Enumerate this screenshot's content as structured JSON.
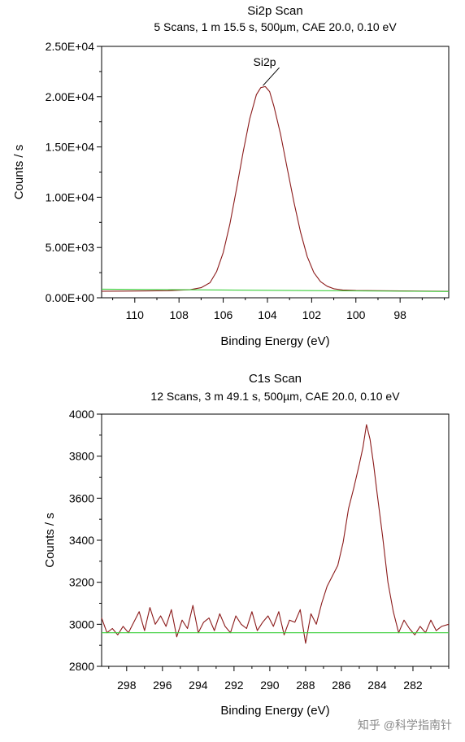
{
  "watermark": "知乎 @科学指南针",
  "chart_data": [
    {
      "type": "line",
      "title": "Si2p Scan",
      "subtitle": "5 Scans,  1 m 15.5 s,  500µm,  CAE 20.0,  0.10 eV",
      "xlabel": "Binding Energy (eV)",
      "ylabel": "Counts / s",
      "xlim": [
        111.5,
        95.8
      ],
      "ylim": [
        0,
        25000
      ],
      "x_reversed": true,
      "x_ticks": [
        110,
        108,
        106,
        104,
        102,
        100,
        98
      ],
      "x_tick_labels": [
        "110",
        "108",
        "106",
        "104",
        "102",
        "100",
        "98"
      ],
      "y_ticks": [
        0,
        5000,
        10000,
        15000,
        20000,
        25000
      ],
      "y_tick_labels": [
        "0.00E+00",
        "5.00E+03",
        "1.00E+04",
        "1.50E+04",
        "2.00E+04",
        "2.50E+04"
      ],
      "annotation": {
        "text": "Si2p",
        "x": 104.2,
        "y": 21100
      },
      "series": [
        {
          "color": "#8b1a1a",
          "x": [
            111.5,
            110.5,
            109.5,
            108.5,
            107.5,
            107.0,
            106.6,
            106.3,
            106.0,
            105.7,
            105.4,
            105.1,
            104.8,
            104.5,
            104.3,
            104.1,
            103.9,
            103.7,
            103.4,
            103.1,
            102.8,
            102.5,
            102.2,
            101.9,
            101.6,
            101.3,
            101.0,
            100.6,
            100.0,
            99.0,
            98.0,
            97.0,
            95.8
          ],
          "y": [
            650,
            660,
            680,
            700,
            800,
            1000,
            1500,
            2600,
            4500,
            7300,
            10800,
            14500,
            17800,
            20200,
            20900,
            21000,
            20500,
            19000,
            16200,
            12800,
            9500,
            6500,
            4100,
            2500,
            1600,
            1150,
            900,
            780,
            720,
            700,
            680,
            660,
            650
          ]
        },
        {
          "color": "#3ccf3c",
          "x": [
            111.5,
            95.8
          ],
          "y": [
            860,
            620
          ]
        }
      ]
    },
    {
      "type": "line",
      "title": "C1s Scan",
      "subtitle": "12 Scans,  3 m 49.1 s,  500µm,  CAE 20.0,  0.10 eV",
      "xlabel": "Binding Energy (eV)",
      "ylabel": "Counts / s",
      "xlim": [
        299.4,
        280.0
      ],
      "ylim": [
        2800,
        4000
      ],
      "x_reversed": true,
      "x_ticks": [
        298,
        296,
        294,
        292,
        290,
        288,
        286,
        284,
        282
      ],
      "x_tick_labels": [
        "298",
        "296",
        "294",
        "292",
        "290",
        "288",
        "286",
        "284",
        "282"
      ],
      "y_ticks": [
        2800,
        3000,
        3200,
        3400,
        3600,
        3800,
        4000
      ],
      "y_tick_labels": [
        "2800",
        "3000",
        "3200",
        "3400",
        "3600",
        "3800",
        "4000"
      ],
      "series": [
        {
          "color": "#8b1a1a",
          "x": [
            299.4,
            299.1,
            298.8,
            298.5,
            298.2,
            297.9,
            297.6,
            297.3,
            297.0,
            296.7,
            296.4,
            296.1,
            295.8,
            295.5,
            295.2,
            294.9,
            294.6,
            294.3,
            294.0,
            293.7,
            293.4,
            293.1,
            292.8,
            292.5,
            292.2,
            291.9,
            291.6,
            291.3,
            291.0,
            290.7,
            290.4,
            290.1,
            289.8,
            289.5,
            289.2,
            288.9,
            288.6,
            288.3,
            288.0,
            287.7,
            287.4,
            287.1,
            286.8,
            286.5,
            286.2,
            285.9,
            285.6,
            285.3,
            285.0,
            284.8,
            284.6,
            284.4,
            284.2,
            284.0,
            283.7,
            283.4,
            283.1,
            282.8,
            282.5,
            282.2,
            281.9,
            281.6,
            281.3,
            281.0,
            280.7,
            280.4,
            280.0
          ],
          "y": [
            3030,
            2960,
            2980,
            2950,
            2990,
            2960,
            3010,
            3060,
            2970,
            3080,
            3000,
            3040,
            2990,
            3070,
            2940,
            3020,
            2980,
            3090,
            2960,
            3010,
            3030,
            2970,
            3050,
            2990,
            2960,
            3040,
            3000,
            2980,
            3060,
            2970,
            3010,
            3040,
            2990,
            3060,
            2950,
            3020,
            3010,
            3070,
            2910,
            3050,
            3000,
            3100,
            3180,
            3230,
            3280,
            3390,
            3550,
            3650,
            3760,
            3840,
            3950,
            3880,
            3760,
            3620,
            3420,
            3200,
            3060,
            2960,
            3020,
            2980,
            2950,
            2990,
            2960,
            3020,
            2970,
            2990,
            3000
          ]
        },
        {
          "color": "#3ccf3c",
          "x": [
            299.4,
            280.0
          ],
          "y": [
            2960,
            2960
          ]
        }
      ]
    }
  ]
}
